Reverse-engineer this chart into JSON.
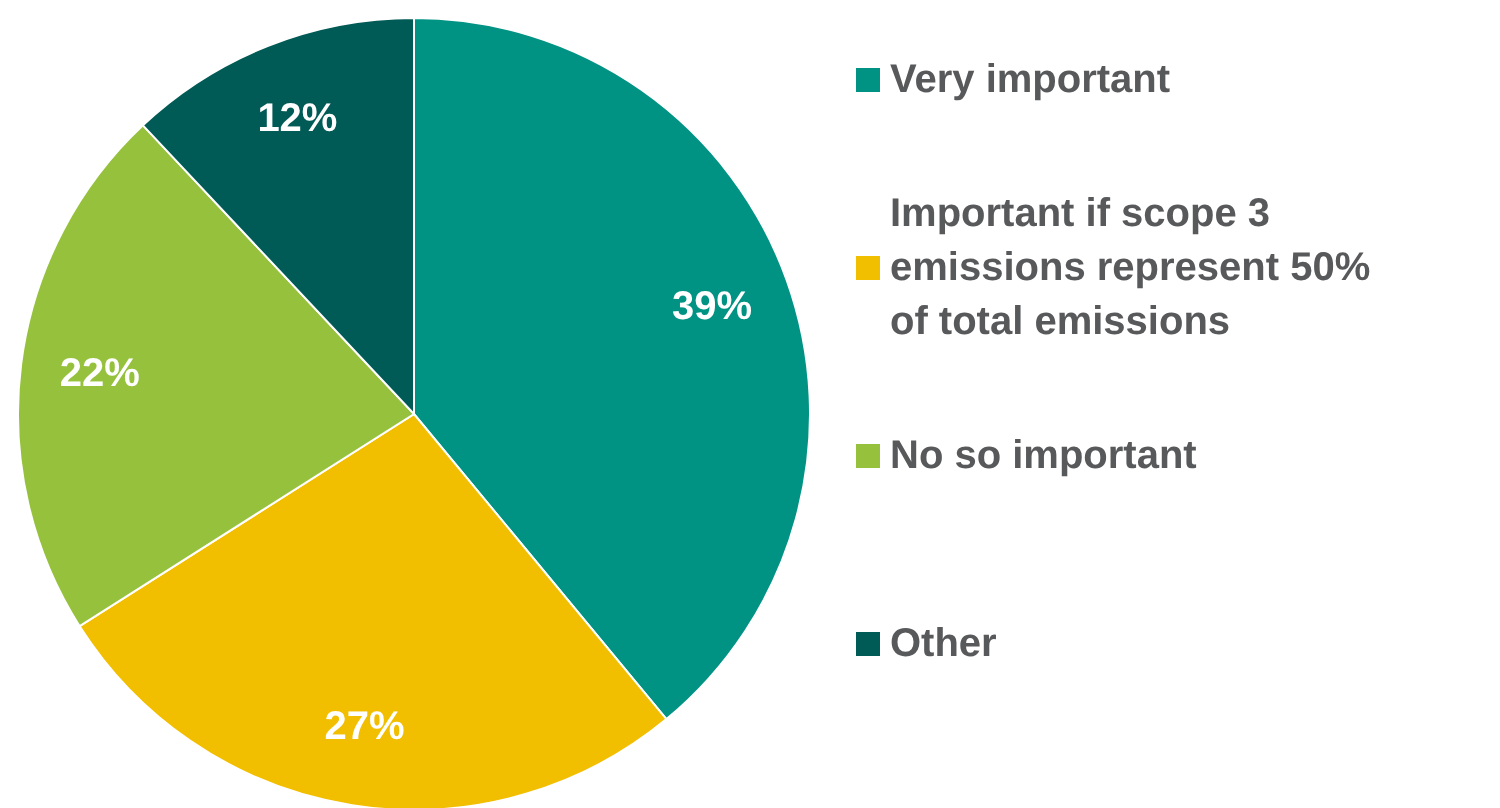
{
  "chart_data": {
    "type": "pie",
    "categories": [
      "Very important",
      "Important if scope 3 emissions represent 50% of total emissions",
      "No so important",
      "Other"
    ],
    "values": [
      39,
      27,
      22,
      12
    ],
    "colors": [
      "#009384",
      "#f2be00",
      "#96c13d",
      "#005a55"
    ],
    "value_labels": [
      "39%",
      "27%",
      "22%",
      "12%"
    ],
    "legend": "right"
  }
}
